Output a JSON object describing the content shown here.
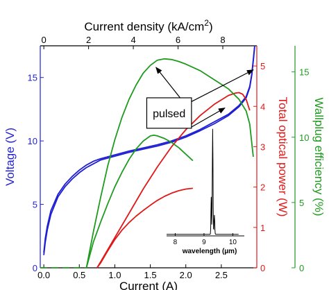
{
  "chart_data": {
    "type": "line",
    "title": "",
    "colors": {
      "voltage": "#1f1fd2",
      "optical_power": "#e01818",
      "wallplug": "#1f9a1f",
      "frame": "#000000"
    },
    "axes": {
      "bottom": {
        "label": "Current (A)",
        "range": [
          -0.05,
          3.0
        ],
        "ticks": [
          0.0,
          0.5,
          1.0,
          1.5,
          2.0,
          2.5
        ],
        "tick_labels": [
          "0.0",
          "0.5",
          "1.0",
          "1.5",
          "2.0",
          "2.5"
        ]
      },
      "top": {
        "label_prefix": "Current density (kA/cm",
        "label_sup": "2",
        "label_suffix": ")",
        "range": [
          -0.16,
          9.52
        ],
        "ticks": [
          0,
          2,
          4,
          6,
          8
        ],
        "tick_labels": [
          "0",
          "2",
          "4",
          "6",
          "8"
        ]
      },
      "left": {
        "label": "Voltage (V)",
        "range": [
          0,
          17.5
        ],
        "ticks": [
          0,
          5,
          10,
          15
        ],
        "tick_labels": [
          "0",
          "5",
          "10",
          "15"
        ]
      },
      "right_power": {
        "label": "Total optical power (W)",
        "range": [
          0,
          5.5
        ],
        "ticks": [
          0,
          1,
          2,
          3,
          4,
          5
        ],
        "tick_labels": [
          "0",
          "1",
          "2",
          "3",
          "4",
          "5"
        ]
      },
      "right_efficiency": {
        "label": "Wallplug efficiency (%)",
        "range": [
          0,
          17.0
        ],
        "ticks": [
          0,
          5,
          10,
          15
        ],
        "tick_labels": [
          "0",
          "5",
          "10",
          "15"
        ]
      }
    },
    "series": [
      {
        "axis": "left",
        "color_key": "voltage",
        "x": [
          0.0,
          0.02,
          0.05,
          0.1,
          0.2,
          0.3,
          0.4,
          0.5,
          0.6,
          0.7,
          0.8,
          1.0,
          1.2,
          1.4,
          1.6,
          1.8,
          2.0,
          2.2,
          2.4,
          2.6,
          2.75,
          2.85,
          2.9,
          2.93,
          2.95,
          2.97
        ],
        "y": [
          1.0,
          2.0,
          3.0,
          4.2,
          5.6,
          6.4,
          7.0,
          7.5,
          7.9,
          8.2,
          8.5,
          8.8,
          9.1,
          9.35,
          9.6,
          9.9,
          10.3,
          10.8,
          11.35,
          12.0,
          12.7,
          13.4,
          14.2,
          15.2,
          16.3,
          17.4
        ]
      },
      {
        "axis": "left",
        "color_key": "voltage",
        "x": [
          0.0,
          0.02,
          0.05,
          0.1,
          0.2,
          0.3,
          0.4,
          0.5,
          0.6,
          0.7,
          0.8,
          1.0,
          1.2,
          1.4,
          1.6,
          1.8,
          2.0,
          2.2,
          2.4,
          2.6,
          2.75,
          2.85,
          2.9,
          2.93,
          2.95,
          2.97
        ],
        "y": [
          1.2,
          2.3,
          3.3,
          4.5,
          5.8,
          6.6,
          7.2,
          7.7,
          8.1,
          8.4,
          8.6,
          8.9,
          9.2,
          9.45,
          9.7,
          10.0,
          10.4,
          10.9,
          11.5,
          12.1,
          12.8,
          13.5,
          14.3,
          15.3,
          16.4,
          17.5
        ]
      },
      {
        "axis": "right_power",
        "color_key": "optical_power",
        "x": [
          0.75,
          0.8,
          0.9,
          1.0,
          1.1,
          1.2,
          1.3,
          1.4,
          1.5,
          1.6,
          1.7,
          1.8,
          1.9,
          2.0,
          2.1
        ],
        "y": [
          0.0,
          0.12,
          0.42,
          0.7,
          0.93,
          1.12,
          1.28,
          1.42,
          1.55,
          1.67,
          1.77,
          1.85,
          1.91,
          1.95,
          1.97
        ]
      },
      {
        "axis": "right_power",
        "color_key": "optical_power",
        "x": [
          0.75,
          0.8,
          1.0,
          1.2,
          1.4,
          1.6,
          1.8,
          2.0,
          2.2,
          2.4,
          2.6,
          2.7,
          2.75,
          2.8,
          2.85,
          2.9
        ],
        "y": [
          0.0,
          0.15,
          0.75,
          1.35,
          1.95,
          2.5,
          3.0,
          3.42,
          3.77,
          4.05,
          4.27,
          4.33,
          4.34,
          4.3,
          4.17,
          3.9
        ]
      },
      {
        "axis": "right_efficiency",
        "color_key": "wallplug",
        "x": [
          0.6,
          0.65,
          0.7,
          0.8,
          0.9,
          1.0,
          1.1,
          1.2,
          1.3,
          1.4,
          1.5,
          1.55,
          1.6,
          1.7,
          1.8,
          1.9,
          2.0,
          2.1
        ],
        "y": [
          0.0,
          1.0,
          2.0,
          3.5,
          4.9,
          6.2,
          7.3,
          8.3,
          9.1,
          9.7,
          10.1,
          10.15,
          10.1,
          9.9,
          9.6,
          9.2,
          8.7,
          8.2
        ]
      },
      {
        "axis": "right_efficiency",
        "color_key": "wallplug",
        "x": [
          0.6,
          0.7,
          0.8,
          0.9,
          1.0,
          1.1,
          1.2,
          1.3,
          1.4,
          1.5,
          1.6,
          1.7,
          1.8,
          1.9,
          2.0,
          2.2,
          2.4,
          2.6,
          2.75,
          2.85,
          2.9,
          2.95
        ],
        "y": [
          0.0,
          2.8,
          5.4,
          7.8,
          9.8,
          11.5,
          12.9,
          14.0,
          14.9,
          15.5,
          15.9,
          16.0,
          15.95,
          15.8,
          15.6,
          15.1,
          14.4,
          13.7,
          12.9,
          12.0,
          11.0,
          8.5
        ]
      },
      {
        "axis": "right_efficiency",
        "color_key": "wallplug",
        "dashed": true,
        "x": [
          -0.05,
          0.1,
          0.2,
          0.3,
          0.4,
          0.5,
          0.6
        ],
        "y": [
          0.0,
          0.0,
          0.0,
          0.0,
          0.0,
          0.0,
          0.0
        ]
      }
    ],
    "annotation": {
      "text": "pulsed",
      "box": {
        "x": [
          1.45,
          2.08
        ],
        "y": [
          11.0,
          13.4
        ],
        "axis": "left"
      },
      "arrows": [
        {
          "from": [
            1.92,
            13.4
          ],
          "to": [
            1.58,
            15.8
          ],
          "axis": "left"
        },
        {
          "from": [
            2.08,
            13.1
          ],
          "to": [
            2.95,
            15.6
          ],
          "axis": "left"
        },
        {
          "from": [
            2.05,
            11.0
          ],
          "to": [
            2.55,
            12.6
          ],
          "axis": "left"
        }
      ]
    },
    "inset": {
      "xlabel": "wavelength (µm)",
      "xrange": [
        7.7,
        10.4
      ],
      "yrange": [
        0,
        1.05
      ],
      "ticks": [
        8,
        9,
        10
      ],
      "tick_labels": [
        "8",
        "9",
        "10"
      ],
      "peak_center": 9.3,
      "placement": "bottom-right"
    }
  }
}
